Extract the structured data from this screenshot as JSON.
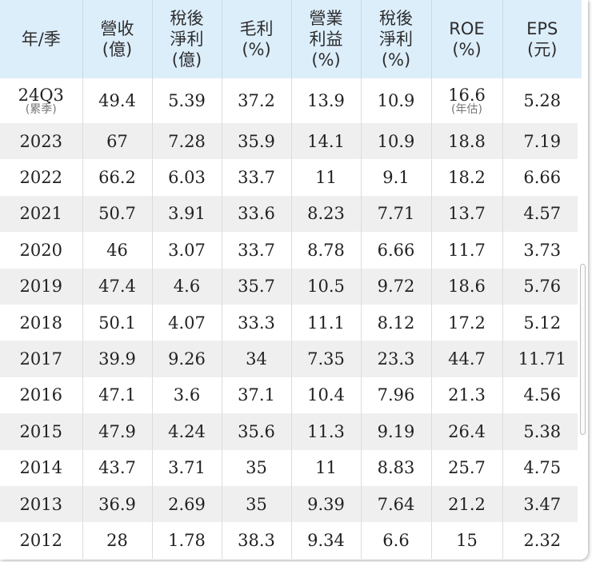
{
  "chart_data": {
    "type": "table",
    "headers": [
      [
        "年/季"
      ],
      [
        "營收",
        "(億)"
      ],
      [
        "稅後",
        "淨利",
        "(億)"
      ],
      [
        "毛利",
        "(%)"
      ],
      [
        "營業",
        "利益",
        "(%)"
      ],
      [
        "稅後",
        "淨利",
        "(%)"
      ],
      [
        "ROE",
        "(%)"
      ],
      [
        "EPS",
        "(元)"
      ]
    ],
    "first_row": {
      "period": "24Q3",
      "period_note": "(累季)",
      "revenue": "49.4",
      "net_income": "5.39",
      "gross_margin": "37.2",
      "operating_margin": "13.9",
      "net_margin": "10.9",
      "roe": "16.6",
      "roe_note": "(年估)",
      "eps": "5.28"
    },
    "rows": [
      [
        "2023",
        "67",
        "7.28",
        "35.9",
        "14.1",
        "10.9",
        "18.8",
        "7.19"
      ],
      [
        "2022",
        "66.2",
        "6.03",
        "33.7",
        "11",
        "9.1",
        "18.2",
        "6.66"
      ],
      [
        "2021",
        "50.7",
        "3.91",
        "33.6",
        "8.23",
        "7.71",
        "13.7",
        "4.57"
      ],
      [
        "2020",
        "46",
        "3.07",
        "33.7",
        "8.78",
        "6.66",
        "11.7",
        "3.73"
      ],
      [
        "2019",
        "47.4",
        "4.6",
        "35.7",
        "10.5",
        "9.72",
        "18.6",
        "5.76"
      ],
      [
        "2018",
        "50.1",
        "4.07",
        "33.3",
        "11.1",
        "8.12",
        "17.2",
        "5.12"
      ],
      [
        "2017",
        "39.9",
        "9.26",
        "34",
        "7.35",
        "23.3",
        "44.7",
        "11.71"
      ],
      [
        "2016",
        "47.1",
        "3.6",
        "37.1",
        "10.4",
        "7.96",
        "21.3",
        "4.56"
      ],
      [
        "2015",
        "47.9",
        "4.24",
        "35.6",
        "11.3",
        "9.19",
        "26.4",
        "5.38"
      ],
      [
        "2014",
        "43.7",
        "3.71",
        "35",
        "11",
        "8.83",
        "25.7",
        "4.75"
      ],
      [
        "2013",
        "36.9",
        "2.69",
        "35",
        "9.39",
        "7.64",
        "21.2",
        "3.47"
      ],
      [
        "2012",
        "28",
        "1.78",
        "38.3",
        "9.34",
        "6.6",
        "15",
        "2.32"
      ]
    ]
  },
  "colors": {
    "header_bg": "#ddeefb",
    "alt_row_bg": "#efefef",
    "row_bg": "#ffffff",
    "text": "#222222",
    "note_text": "#777777"
  }
}
